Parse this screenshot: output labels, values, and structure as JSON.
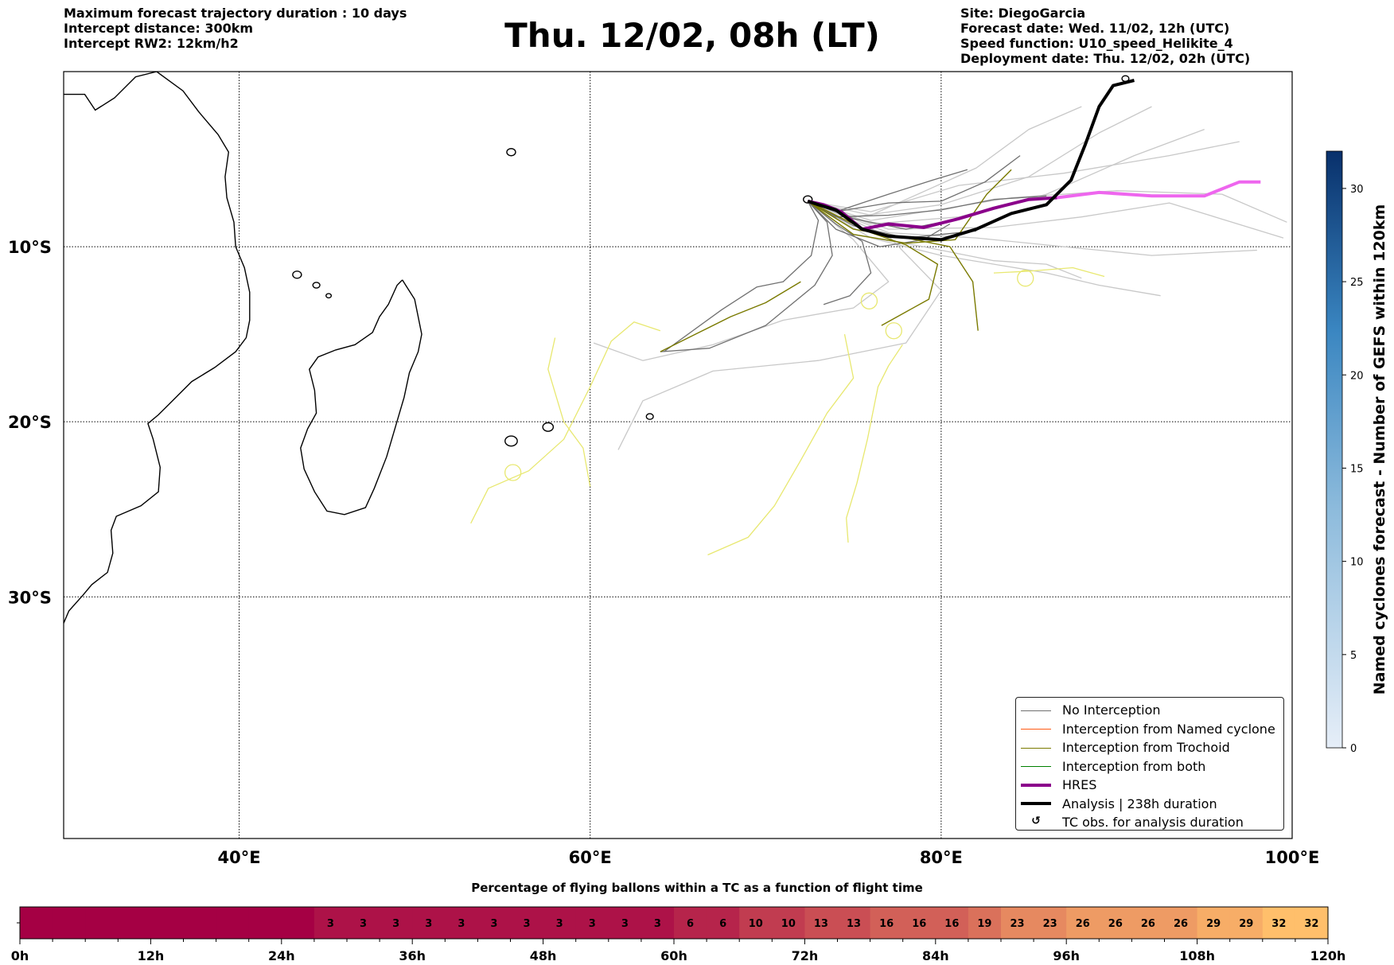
{
  "header": {
    "info_left": [
      "Maximum forecast trajectory duration : 10 days",
      "Intercept distance: 300km",
      "Intercept RW2: 12km/h2"
    ],
    "title": "Thu. 12/02, 08h (LT)",
    "info_right": [
      "Site: DiegoGarcia",
      "Forecast date: Wed. 11/02, 12h (UTC)",
      "Speed function: U10_speed_Helikite_4",
      "Deployment date: Thu. 12/02, 02h (UTC)"
    ]
  },
  "map": {
    "lon_range": [
      30,
      100
    ],
    "lat_range": [
      -43.8,
      0.0
    ],
    "lon_gridlines": [
      40,
      60,
      80
    ],
    "lat_gridlines": [
      -10,
      -20,
      -30
    ],
    "lon_labels": [
      "40°E",
      "60°E",
      "80°E",
      "100°E"
    ],
    "lat_labels": [
      "10°S",
      "20°S",
      "30°S"
    ],
    "deployment_site": [
      72.4,
      -7.4
    ],
    "colors": {
      "no_interception": "#707070",
      "no_interception_light": "#c8c8c8",
      "named_cyclone": "#ff5a14",
      "trochoid": "#7a7a00",
      "trochoid_light": "#e8e870",
      "both": "#008000",
      "hres": "#8b008b",
      "hres_late": "#ee66ee",
      "analysis": "#000000",
      "coast": "#000000"
    }
  },
  "legend": {
    "items": [
      {
        "label": "No Interception",
        "color": "#707070",
        "style": "thin"
      },
      {
        "label": "Interception from Named cyclone",
        "color": "#ff5a14",
        "style": "thin"
      },
      {
        "label": "Interception from Trochoid",
        "color": "#7a7a00",
        "style": "thin"
      },
      {
        "label": "Interception from both",
        "color": "#008000",
        "style": "thin"
      },
      {
        "label": "HRES",
        "color": "#8b008b",
        "style": "thick"
      },
      {
        "label": "Analysis | 238h duration",
        "color": "#000000",
        "style": "thick"
      },
      {
        "label": "TC obs. for analysis duration",
        "color": "#000000",
        "style": "glyph",
        "glyph": "↺"
      }
    ]
  },
  "colorbar": {
    "label": "Named cyclones forecast - Number of GEFS within 120km",
    "min": 0,
    "max": 32,
    "ticks": [
      0,
      5,
      10,
      15,
      20,
      25,
      30
    ],
    "colors": [
      "#e6eef8",
      "#08306b"
    ]
  },
  "percentage_bar": {
    "title": "Percentage of flying ballons within a TC as a function of flight time",
    "max_hours": 120,
    "step_hours": 3,
    "values": [
      0,
      0,
      0,
      0,
      0,
      0,
      0,
      0,
      0,
      3,
      3,
      3,
      3,
      3,
      3,
      3,
      3,
      3,
      3,
      3,
      6,
      6,
      10,
      10,
      13,
      13,
      16,
      16,
      16,
      19,
      23,
      23,
      26,
      26,
      26,
      26,
      29,
      29,
      32,
      32
    ],
    "tick_labels": [
      "0h",
      "12h",
      "24h",
      "36h",
      "48h",
      "60h",
      "72h",
      "84h",
      "96h",
      "108h",
      "120h"
    ],
    "colors": [
      "#a50044",
      "#ffbf6b"
    ]
  }
}
